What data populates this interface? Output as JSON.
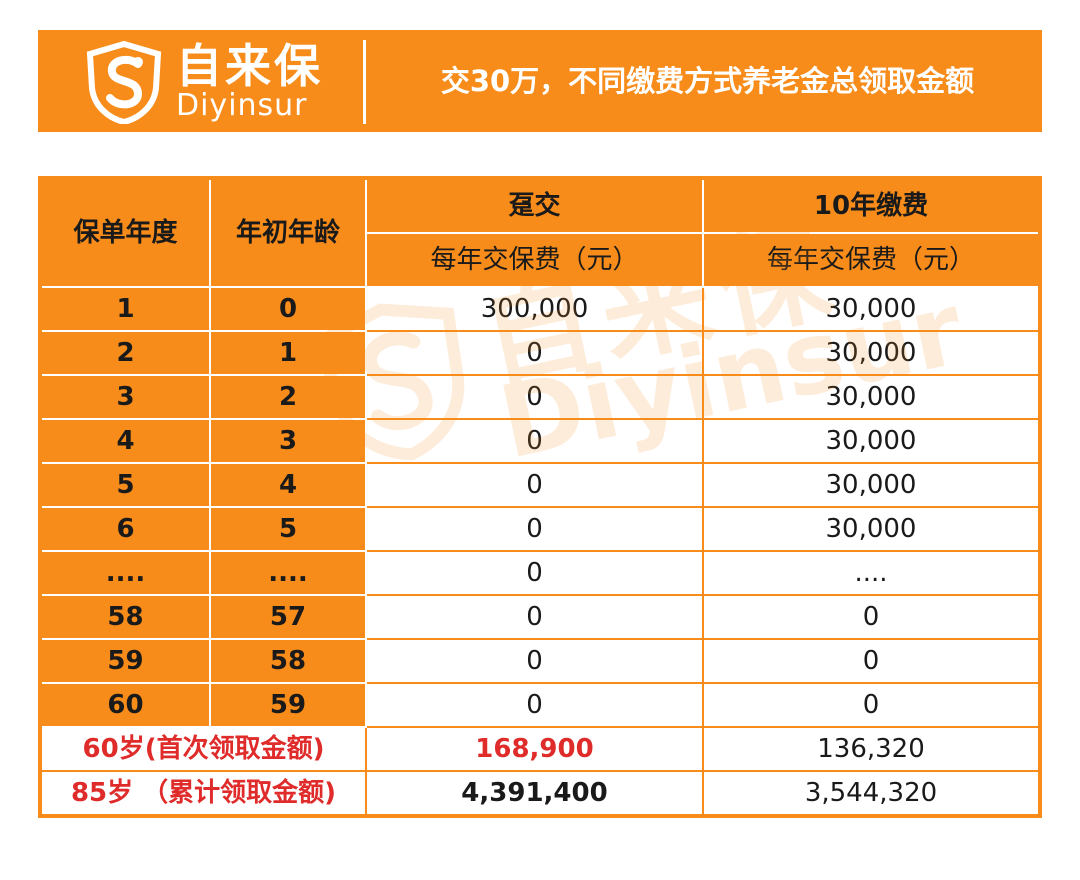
{
  "brand": {
    "name_cn": "自来保",
    "name_en": "Diyinsur",
    "color": "#f78c1a"
  },
  "banner": {
    "title": "交30万，不同缴费方式养老金总领取金额"
  },
  "table": {
    "col_year": "保单年度",
    "col_age": "年初年龄",
    "plan_a": "趸交",
    "plan_b": "10年缴费",
    "premium_label": "每年交保费（元）",
    "rows": [
      {
        "year": "1",
        "age": "0",
        "a": "300,000",
        "b": "30,000"
      },
      {
        "year": "2",
        "age": "1",
        "a": "0",
        "b": "30,000"
      },
      {
        "year": "3",
        "age": "2",
        "a": "0",
        "b": "30,000"
      },
      {
        "year": "4",
        "age": "3",
        "a": "0",
        "b": "30,000"
      },
      {
        "year": "5",
        "age": "4",
        "a": "0",
        "b": "30,000"
      },
      {
        "year": "6",
        "age": "5",
        "a": "0",
        "b": "30,000"
      },
      {
        "year": "....",
        "age": "....",
        "a": "0",
        "b": "...."
      },
      {
        "year": "58",
        "age": "57",
        "a": "0",
        "b": "0"
      },
      {
        "year": "59",
        "age": "58",
        "a": "0",
        "b": "0"
      },
      {
        "year": "60",
        "age": "59",
        "a": "0",
        "b": "0"
      }
    ],
    "summary": [
      {
        "label": "60岁(首次领取金额)",
        "a": "168,900",
        "b": "136,320"
      },
      {
        "label": "85岁 （累计领取金额)",
        "a": "4,391,400",
        "b": "3,544,320"
      }
    ]
  },
  "icons": {
    "logo": "shield-s-logo-icon",
    "watermark": "brand-watermark"
  }
}
